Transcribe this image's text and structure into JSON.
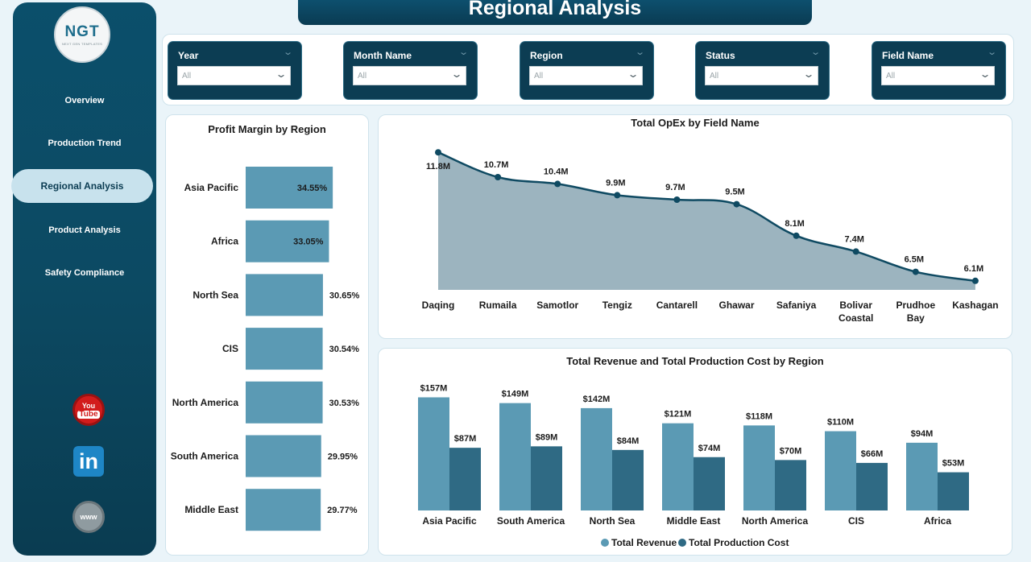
{
  "logo": {
    "main": "NGT",
    "sub": "NEXT GEN TEMPLATES"
  },
  "nav": {
    "items": [
      {
        "label": "Overview"
      },
      {
        "label": "Production Trend"
      },
      {
        "label": "Regional Analysis",
        "active": true
      },
      {
        "label": "Product Analysis"
      },
      {
        "label": "Safety Compliance"
      }
    ]
  },
  "social": {
    "youtube_top": "You",
    "youtube_bottom": "Tube",
    "linkedin": "in",
    "web": "www"
  },
  "header": {
    "title": "Regional Analysis"
  },
  "filters": [
    {
      "label": "Year",
      "value": "All"
    },
    {
      "label": "Month Name",
      "value": "All"
    },
    {
      "label": "Region",
      "value": "All"
    },
    {
      "label": "Status",
      "value": "All"
    },
    {
      "label": "Field Name",
      "value": "All"
    }
  ],
  "colors": {
    "bar_light": "#5b9ab4",
    "bar_dark": "#2f6a84",
    "area_fill": "#9cb4bf",
    "line": "#0f4a62"
  },
  "chart_data": [
    {
      "type": "bar",
      "orientation": "horizontal",
      "title": "Profit Margin by Region",
      "categories": [
        "Asia Pacific",
        "Africa",
        "North Sea",
        "CIS",
        "North America",
        "South America",
        "Middle East"
      ],
      "values": [
        34.55,
        33.05,
        30.65,
        30.54,
        30.53,
        29.95,
        29.77
      ],
      "labels": [
        "34.55%",
        "33.05%",
        "30.65%",
        "30.54%",
        "30.53%",
        "29.95%",
        "29.77%"
      ],
      "xlim": [
        0,
        36
      ]
    },
    {
      "type": "area",
      "title": "Total OpEx by Field Name",
      "categories": [
        "Daqing",
        "Rumaila",
        "Samotlor",
        "Tengiz",
        "Cantarell",
        "Ghawar",
        "Safaniya",
        "Bolivar Coastal",
        "Prudhoe Bay",
        "Kashagan"
      ],
      "values": [
        11.8,
        10.7,
        10.4,
        9.9,
        9.7,
        9.5,
        8.1,
        7.4,
        6.5,
        6.1
      ],
      "labels": [
        "11.8M",
        "10.7M",
        "10.4M",
        "9.9M",
        "9.7M",
        "9.5M",
        "8.1M",
        "7.4M",
        "6.5M",
        "6.1M"
      ],
      "ylim": [
        5.7,
        12.2
      ]
    },
    {
      "type": "bar",
      "title": "Total Revenue and Total Production Cost by Region",
      "categories": [
        "Asia Pacific",
        "South America",
        "North Sea",
        "Middle East",
        "North America",
        "CIS",
        "Africa"
      ],
      "series": [
        {
          "name": "Total Revenue",
          "values": [
            157,
            149,
            142,
            121,
            118,
            110,
            94
          ],
          "labels": [
            "$157M",
            "$149M",
            "$142M",
            "$121M",
            "$118M",
            "$110M",
            "$94M"
          ]
        },
        {
          "name": "Total Production Cost",
          "values": [
            87,
            89,
            84,
            74,
            70,
            66,
            53
          ],
          "labels": [
            "$87M",
            "$89M",
            "$84M",
            "$74M",
            "$70M",
            "$66M",
            "$53M"
          ]
        }
      ],
      "ylim": [
        0,
        165
      ],
      "legend": "bottom-center"
    }
  ]
}
